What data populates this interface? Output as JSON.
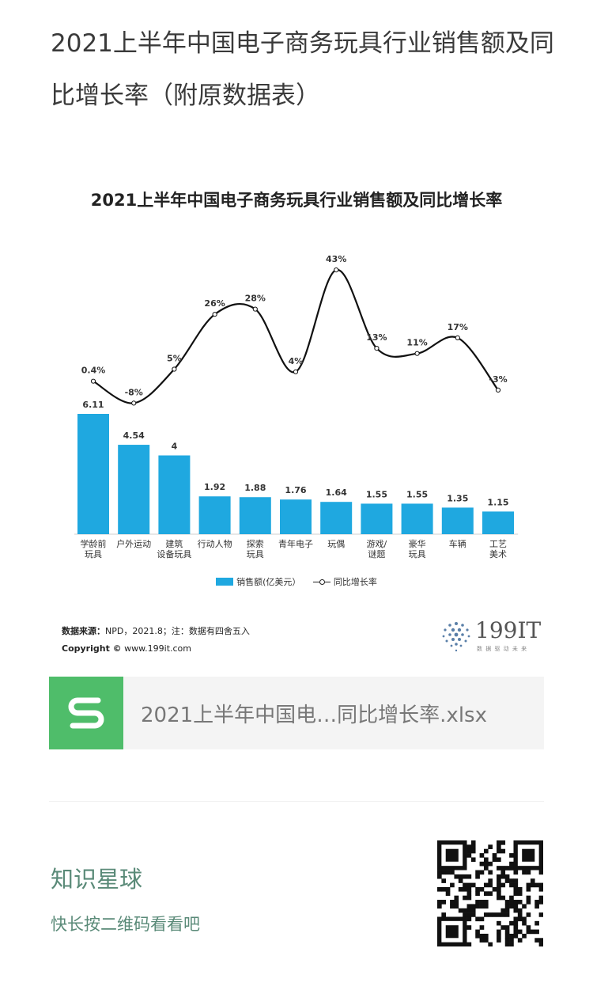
{
  "page": {
    "title": "2021上半年中国电子商务玩具行业销售额及同比增长率（附原数据表）"
  },
  "chart_data": {
    "type": "bar",
    "title": "2021上半年中国电子商务玩具行业销售额及同比增长率",
    "categories": [
      "学龄前\n玩具",
      "户外运动",
      "建筑\n设备玩具",
      "行动人物",
      "探索\n玩具",
      "青年电子",
      "玩偶",
      "游戏/\n谜题",
      "豪华\n玩具",
      "车辆",
      "工艺\n美术"
    ],
    "series": [
      {
        "name": "销售额(亿美元）",
        "type": "bar",
        "color": "#1fa8e0",
        "values": [
          6.11,
          4.54,
          4,
          1.92,
          1.88,
          1.76,
          1.64,
          1.55,
          1.55,
          1.35,
          1.15
        ],
        "labels": [
          "6.11",
          "4.54",
          "4",
          "1.92",
          "1.88",
          "1.76",
          "1.64",
          "1.55",
          "1.55",
          "1.35",
          "1.15"
        ]
      },
      {
        "name": "同比增长率",
        "type": "line",
        "color": "#111111",
        "values": [
          0.4,
          -8,
          5,
          26,
          28,
          4,
          43,
          13,
          11,
          17,
          -3
        ],
        "labels": [
          "0.4%",
          "-8%",
          "5%",
          "26%",
          "28%",
          "4%",
          "43%",
          "13%",
          "11%",
          "17%",
          "-3%"
        ]
      }
    ],
    "legend": [
      "销售额(亿美元）",
      "同比增长率"
    ],
    "legend_position": "bottom",
    "grid": false
  },
  "source": {
    "label": "数据来源：",
    "text": "NPD，2021.8；注：数据有四舍五入",
    "copyright_label": "Copyright ©",
    "copyright_text": "www.199it.com"
  },
  "logo": {
    "text": "199IT",
    "sub": "数 据 驱 动 未 来"
  },
  "file": {
    "icon": "spreadsheet-s-icon",
    "name": "2021上半年中国电…同比增长率.xlsx"
  },
  "promo": {
    "title": "知识星球",
    "subtitle": "快长按二维码看看吧"
  }
}
